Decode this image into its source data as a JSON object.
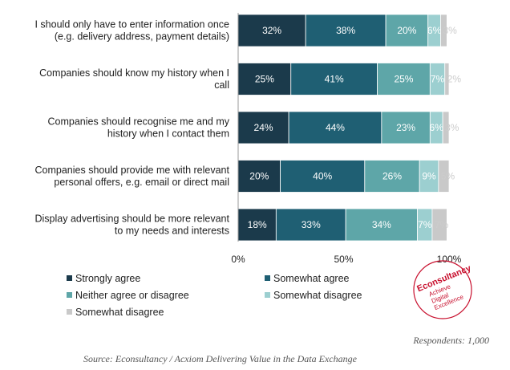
{
  "chart_data": {
    "type": "bar",
    "orientation": "horizontal",
    "stacked": true,
    "categories": [
      [
        "I should only have to enter information once",
        "(e.g. delivery address, payment details)"
      ],
      [
        "Companies should know my history when I",
        "call"
      ],
      [
        "Companies should recognise me and my",
        "history when I contact them"
      ],
      [
        "Companies should provide me with relevant",
        "personal offers, e.g. email or direct mail"
      ],
      [
        "Display advertising should be more relevant",
        "to my needs and interests"
      ]
    ],
    "series": [
      {
        "name": "Strongly agree",
        "color": "#1b3a4b",
        "values": [
          32,
          25,
          24,
          20,
          18
        ]
      },
      {
        "name": "Somewhat agree",
        "color": "#1f5f73",
        "values": [
          38,
          41,
          44,
          40,
          33
        ]
      },
      {
        "name": "Neither agree or disagree",
        "color": "#5ea6a8",
        "values": [
          20,
          25,
          23,
          26,
          34
        ]
      },
      {
        "name": "Somewhat disagree",
        "color": "#9ccfd0",
        "values": [
          6,
          7,
          6,
          9,
          7
        ]
      },
      {
        "name": "Somewhat disagree",
        "color": "#c9c9c9",
        "values": [
          3,
          2,
          3,
          5,
          7
        ]
      }
    ],
    "xlim": [
      0,
      100
    ],
    "xticks": [
      "0%",
      "50%",
      "100%"
    ],
    "value_suffix": "%",
    "legend": "bottom-left"
  },
  "logo": {
    "brand": "Econsultancy",
    "tagline": [
      "Achieve",
      "Digital",
      "Excellence"
    ],
    "color": "#c8102e"
  },
  "footer": {
    "respondents": "Respondents: 1,000",
    "source": "Source: Econsultancy / Acxiom Delivering Value in the Data Exchange"
  }
}
